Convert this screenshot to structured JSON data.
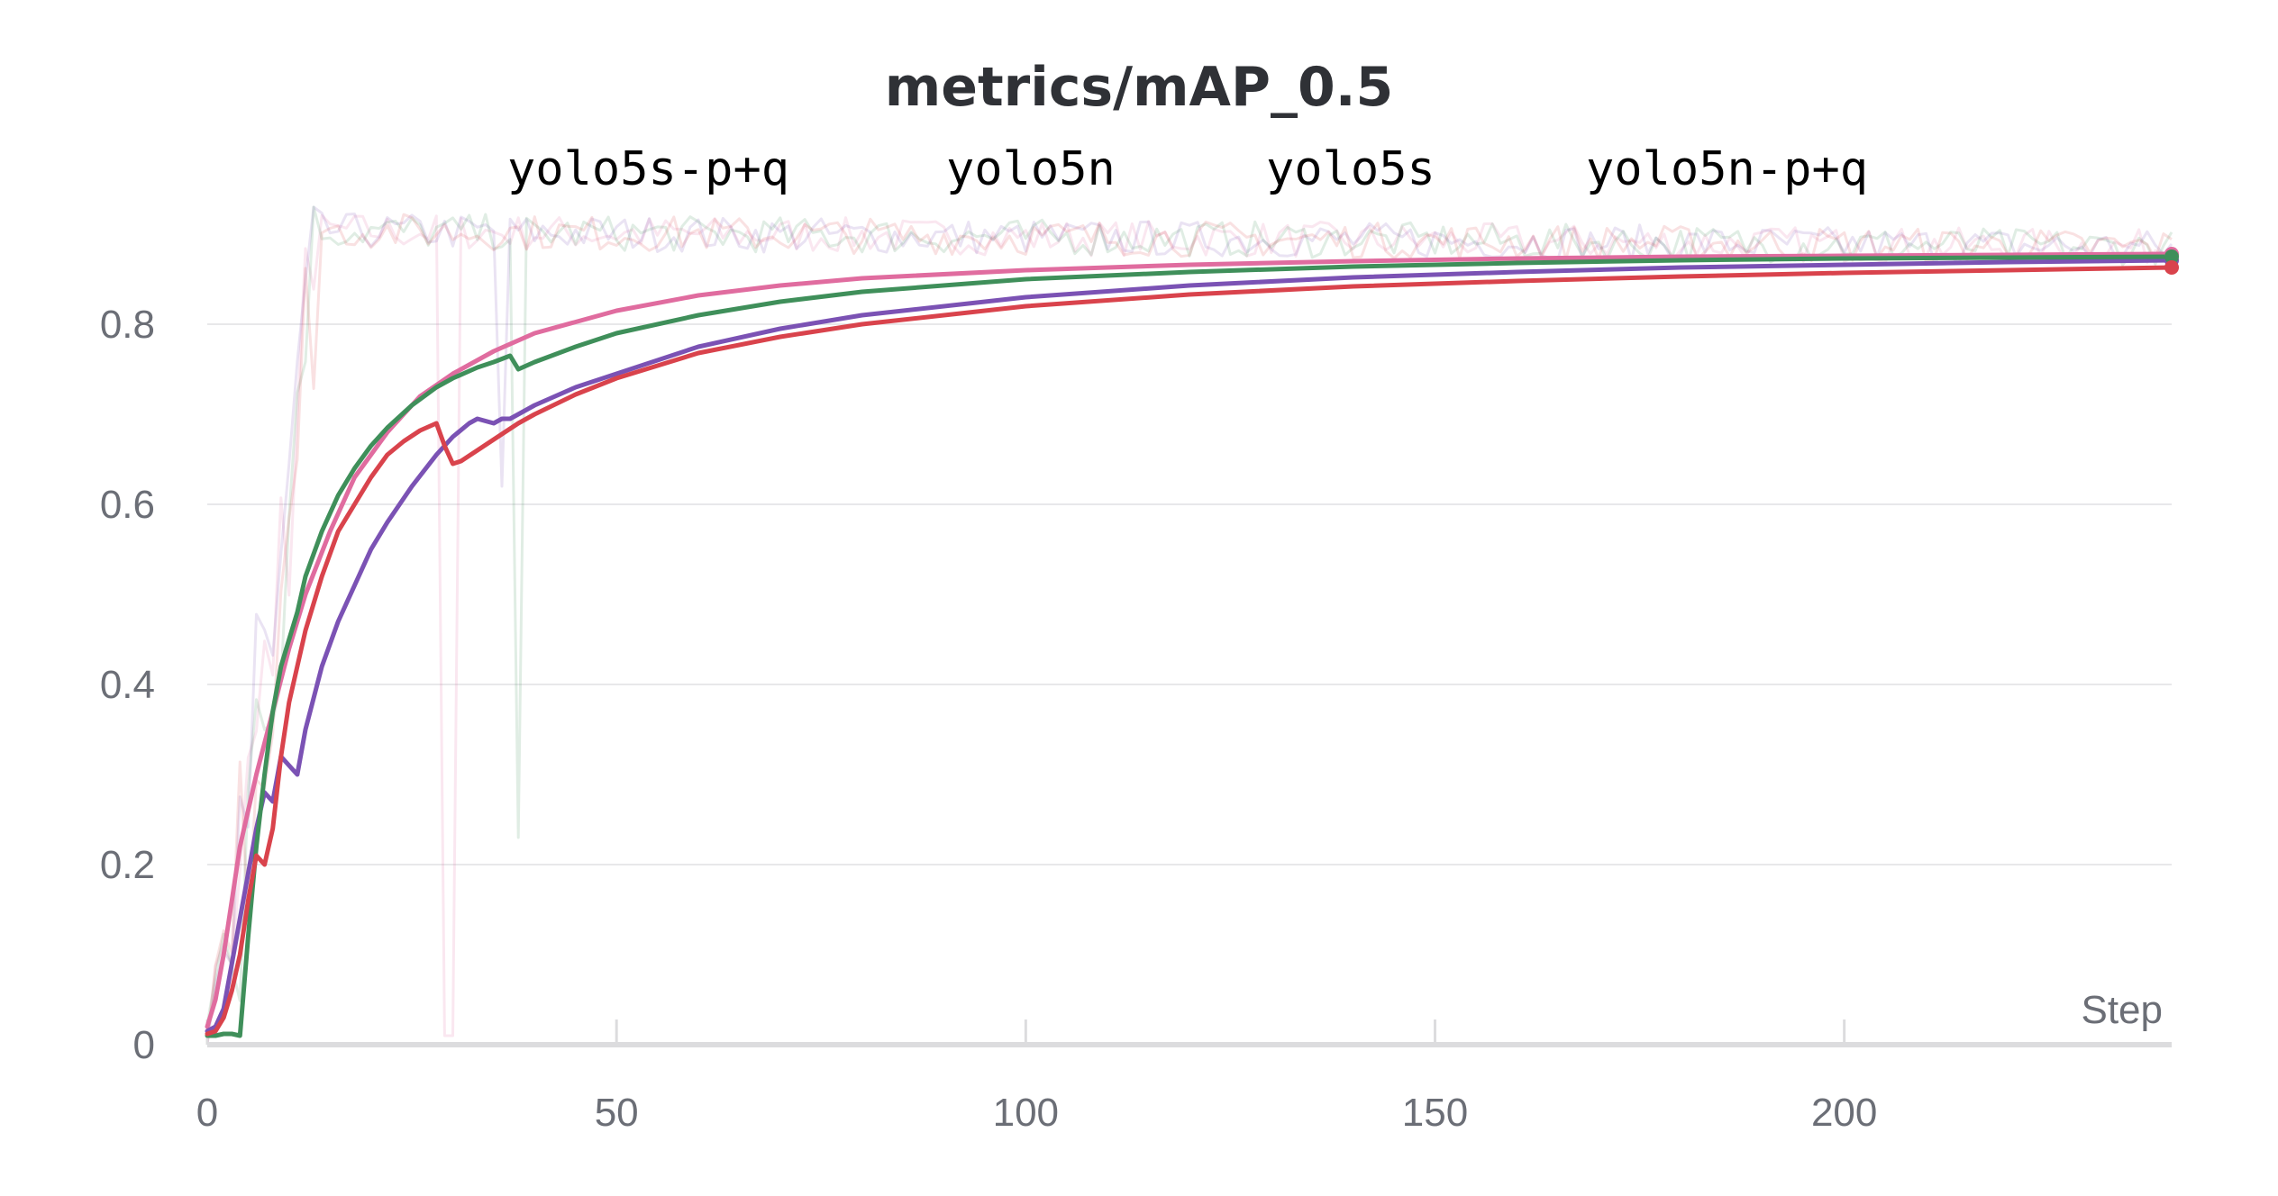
{
  "chart_data": {
    "type": "line",
    "title": "metrics/mAP_0.5",
    "xlabel": "Step",
    "ylabel": "",
    "xlim": [
      0,
      240
    ],
    "ylim": [
      0,
      0.95
    ],
    "x_ticks": [
      "0",
      "50",
      "100",
      "150",
      "200"
    ],
    "x_tick_values": [
      0,
      50,
      100,
      150,
      200
    ],
    "y_ticks": [
      "0",
      "0.2",
      "0.4",
      "0.6",
      "0.8"
    ],
    "y_tick_values": [
      0,
      0.2,
      0.4,
      0.6,
      0.8
    ],
    "grid": true,
    "legend_position": "top",
    "series": [
      {
        "name": "yolo5s-p+q",
        "color": "#e06c9f",
        "x": [
          0,
          1,
          2,
          3,
          4,
          5,
          6,
          8,
          10,
          12,
          15,
          18,
          22,
          26,
          30,
          35,
          40,
          50,
          60,
          70,
          80,
          100,
          120,
          140,
          160,
          180,
          200,
          220,
          240
        ],
        "y": [
          0.02,
          0.05,
          0.1,
          0.16,
          0.22,
          0.26,
          0.3,
          0.37,
          0.44,
          0.5,
          0.57,
          0.63,
          0.68,
          0.72,
          0.745,
          0.77,
          0.79,
          0.815,
          0.832,
          0.843,
          0.851,
          0.86,
          0.866,
          0.87,
          0.873,
          0.875,
          0.876,
          0.877,
          0.878
        ]
      },
      {
        "name": "yolo5n",
        "color": "#7b52b4",
        "x": [
          0,
          1,
          2,
          3,
          4,
          5,
          6,
          7,
          8,
          9,
          10,
          11,
          12,
          14,
          16,
          18,
          20,
          22,
          25,
          28,
          30,
          32,
          33,
          35,
          36,
          37,
          40,
          45,
          50,
          60,
          70,
          80,
          100,
          120,
          140,
          160,
          180,
          200,
          220,
          240
        ],
        "y": [
          0.015,
          0.02,
          0.04,
          0.09,
          0.14,
          0.19,
          0.24,
          0.28,
          0.27,
          0.32,
          0.31,
          0.3,
          0.35,
          0.42,
          0.47,
          0.51,
          0.55,
          0.58,
          0.62,
          0.655,
          0.675,
          0.69,
          0.695,
          0.69,
          0.695,
          0.695,
          0.71,
          0.73,
          0.745,
          0.775,
          0.795,
          0.81,
          0.83,
          0.843,
          0.852,
          0.858,
          0.863,
          0.866,
          0.869,
          0.871
        ]
      },
      {
        "name": "yolo5s",
        "color": "#3f8f5a",
        "x": [
          0,
          1,
          2,
          3,
          4,
          5,
          6,
          7,
          8,
          9,
          10,
          11,
          12,
          14,
          16,
          18,
          20,
          22,
          25,
          28,
          30,
          33,
          35,
          37,
          38,
          40,
          45,
          50,
          60,
          70,
          80,
          100,
          120,
          140,
          160,
          180,
          200,
          220,
          240
        ],
        "y": [
          0.01,
          0.01,
          0.012,
          0.012,
          0.01,
          0.12,
          0.22,
          0.3,
          0.37,
          0.42,
          0.45,
          0.48,
          0.52,
          0.57,
          0.61,
          0.64,
          0.665,
          0.685,
          0.71,
          0.73,
          0.74,
          0.752,
          0.758,
          0.765,
          0.75,
          0.758,
          0.775,
          0.79,
          0.81,
          0.825,
          0.836,
          0.85,
          0.858,
          0.864,
          0.868,
          0.871,
          0.873,
          0.874,
          0.875
        ]
      },
      {
        "name": "yolo5n-p+q",
        "color": "#d9434c",
        "x": [
          0,
          1,
          2,
          3,
          4,
          5,
          6,
          7,
          8,
          9,
          10,
          12,
          14,
          16,
          18,
          20,
          22,
          24,
          26,
          28,
          29,
          30,
          31,
          33,
          35,
          38,
          40,
          45,
          50,
          60,
          70,
          80,
          100,
          120,
          140,
          160,
          180,
          200,
          220,
          240
        ],
        "y": [
          0.012,
          0.015,
          0.03,
          0.06,
          0.1,
          0.16,
          0.21,
          0.2,
          0.24,
          0.32,
          0.38,
          0.46,
          0.52,
          0.57,
          0.6,
          0.63,
          0.655,
          0.67,
          0.682,
          0.69,
          0.665,
          0.645,
          0.648,
          0.66,
          0.672,
          0.69,
          0.7,
          0.722,
          0.74,
          0.768,
          0.786,
          0.8,
          0.82,
          0.833,
          0.842,
          0.848,
          0.853,
          0.857,
          0.86,
          0.863
        ]
      }
    ]
  }
}
